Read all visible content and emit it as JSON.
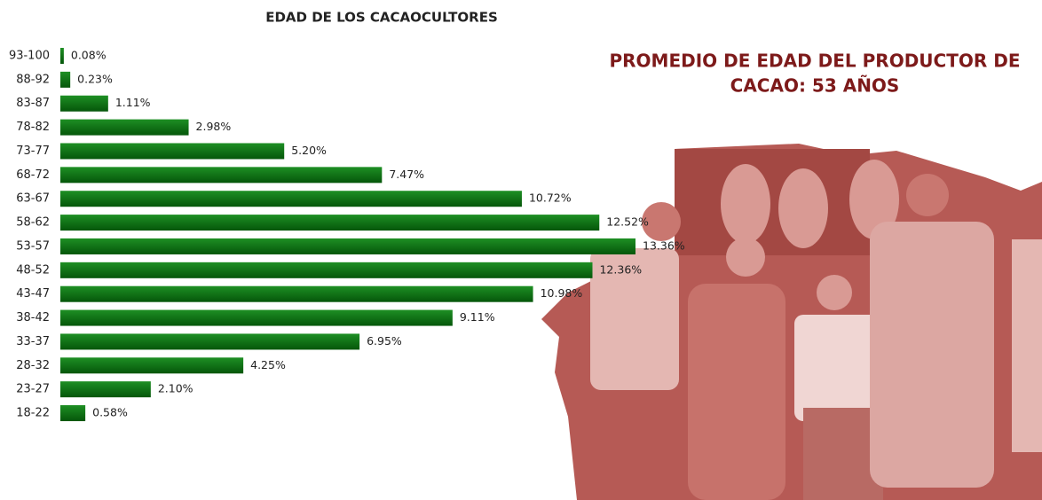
{
  "chart_data": {
    "type": "barh",
    "title": "EDAD DE LOS CACAOCULTORES",
    "annotation": [
      "PROMEDIO DE EDAD DEL PRODUCTOR DE",
      "CACAO: 53 AÑOS"
    ],
    "categories": [
      "93-100",
      "88-92",
      "83-87",
      "78-82",
      "73-77",
      "68-72",
      "63-67",
      "58-62",
      "53-57",
      "48-52",
      "43-47",
      "38-42",
      "33-37",
      "28-32",
      "23-27",
      "18-22"
    ],
    "values": [
      0.08,
      0.23,
      1.11,
      2.98,
      5.2,
      7.47,
      10.72,
      12.52,
      13.36,
      12.36,
      10.98,
      9.11,
      6.95,
      4.25,
      2.1,
      0.58
    ],
    "value_labels": [
      "0.08%",
      "0.23%",
      "1.11%",
      "2.98%",
      "5.20%",
      "7.47%",
      "10.72%",
      "12.52%",
      "13.36%",
      "12.36%",
      "10.98%",
      "9.11%",
      "6.95%",
      "4.25%",
      "2.10%",
      "0.58%"
    ],
    "color": "#0b7a12"
  }
}
